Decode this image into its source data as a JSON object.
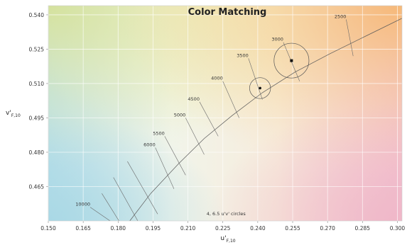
{
  "chart_data": {
    "type": "scatter",
    "title": "Color Matching",
    "xlabel": {
      "main": "u'",
      "sub": "F,10"
    },
    "ylabel": {
      "main": "v'",
      "sub": "F,10"
    },
    "xlim": [
      0.15,
      0.302
    ],
    "ylim": [
      0.45,
      0.544
    ],
    "x_ticks": [
      "0.150",
      "0.165",
      "0.180",
      "0.195",
      "0.210",
      "0.225",
      "0.240",
      "0.255",
      "0.270",
      "0.285",
      "0.300"
    ],
    "y_ticks": [
      "0.465",
      "0.480",
      "0.495",
      "0.510",
      "0.525",
      "0.540"
    ],
    "planckian_locus": [
      {
        "u": 0.185,
        "v": 0.45
      },
      {
        "u": 0.194,
        "v": 0.462
      },
      {
        "u": 0.206,
        "v": 0.475
      },
      {
        "u": 0.217,
        "v": 0.486
      },
      {
        "u": 0.229,
        "v": 0.496
      },
      {
        "u": 0.242,
        "v": 0.506
      },
      {
        "u": 0.256,
        "v": 0.515
      },
      {
        "u": 0.271,
        "v": 0.523
      },
      {
        "u": 0.287,
        "v": 0.531
      },
      {
        "u": 0.302,
        "v": 0.5385
      }
    ],
    "isotemperature_lines": [
      {
        "label": "10000",
        "u1": 0.168,
        "v1": 0.456,
        "u2": 0.178,
        "v2": 0.449
      },
      {
        "label": "",
        "u1": 0.173,
        "v1": 0.462,
        "u2": 0.181,
        "v2": 0.449
      },
      {
        "label": "",
        "u1": 0.178,
        "v1": 0.469,
        "u2": 0.189,
        "v2": 0.449
      },
      {
        "label": "",
        "u1": 0.184,
        "v1": 0.476,
        "u2": 0.197,
        "v2": 0.453
      },
      {
        "label": "6000",
        "u1": 0.196,
        "v1": 0.482,
        "u2": 0.204,
        "v2": 0.464
      },
      {
        "label": "5500",
        "u1": 0.2,
        "v1": 0.487,
        "u2": 0.209,
        "v2": 0.47
      },
      {
        "label": "5000",
        "u1": 0.209,
        "v1": 0.495,
        "u2": 0.217,
        "v2": 0.479
      },
      {
        "label": "4500",
        "u1": 0.215,
        "v1": 0.502,
        "u2": 0.223,
        "v2": 0.487
      },
      {
        "label": "4000",
        "u1": 0.225,
        "v1": 0.511,
        "u2": 0.232,
        "v2": 0.495
      },
      {
        "label": "3500",
        "u1": 0.236,
        "v1": 0.521,
        "u2": 0.242,
        "v2": 0.503
      },
      {
        "label": "3000",
        "u1": 0.251,
        "v1": 0.528,
        "u2": 0.258,
        "v2": 0.511
      },
      {
        "label": "2500",
        "u1": 0.278,
        "v1": 0.538,
        "u2": 0.281,
        "v2": 0.522
      }
    ],
    "points": [
      {
        "u": 0.241,
        "v": 0.508,
        "marker": "circle-dot",
        "circle_radius": 0.0045
      },
      {
        "u": 0.2545,
        "v": 0.52,
        "marker": "square",
        "circle_radius": 0.0075
      }
    ],
    "annotation": "4, 6.5  u'v' circles",
    "annotation_pos": {
      "u": 0.218,
      "v": 0.4525
    },
    "grid": true
  }
}
